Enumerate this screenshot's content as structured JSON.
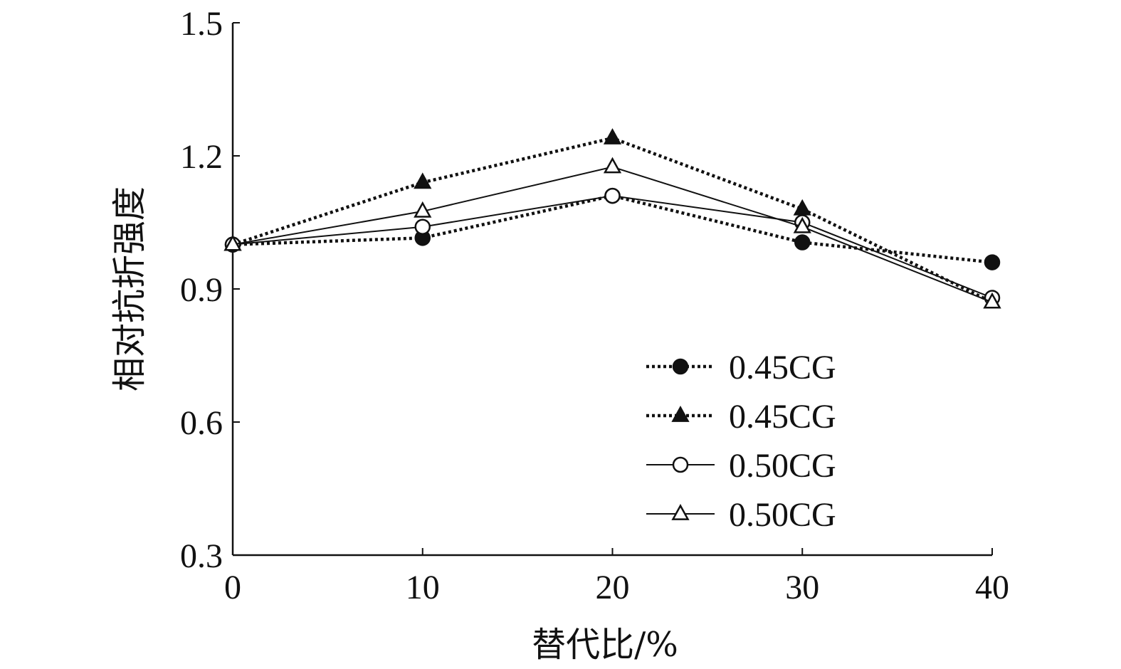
{
  "chart_data": {
    "type": "line",
    "xlabel": "替代比/%",
    "ylabel": "相对抗折强度",
    "x": [
      0,
      10,
      20,
      30,
      40
    ],
    "xlim": [
      0,
      40
    ],
    "ylim": [
      0.3,
      1.5
    ],
    "x_ticks": [
      "0",
      "10",
      "20",
      "30",
      "40"
    ],
    "y_ticks": [
      "0.3",
      "0.6",
      "0.9",
      "1.2",
      "1.5"
    ],
    "grid": false,
    "legend_position": "bottom-right",
    "series": [
      {
        "name": "0.45CG",
        "values": [
          1.0,
          1.015,
          1.11,
          1.005,
          0.96
        ],
        "line_style": "dotted",
        "marker": "filled-circle",
        "color": "#111111"
      },
      {
        "name": "0.45CG",
        "values": [
          1.0,
          1.14,
          1.24,
          1.08,
          0.87
        ],
        "line_style": "dotted",
        "marker": "filled-triangle",
        "color": "#111111"
      },
      {
        "name": "0.50CG",
        "values": [
          1.0,
          1.04,
          1.11,
          1.05,
          0.88
        ],
        "line_style": "solid",
        "marker": "hollow-circle",
        "color": "#111111"
      },
      {
        "name": "0.50CG",
        "values": [
          1.0,
          1.075,
          1.175,
          1.04,
          0.87
        ],
        "line_style": "solid",
        "marker": "hollow-triangle",
        "color": "#111111"
      }
    ]
  }
}
